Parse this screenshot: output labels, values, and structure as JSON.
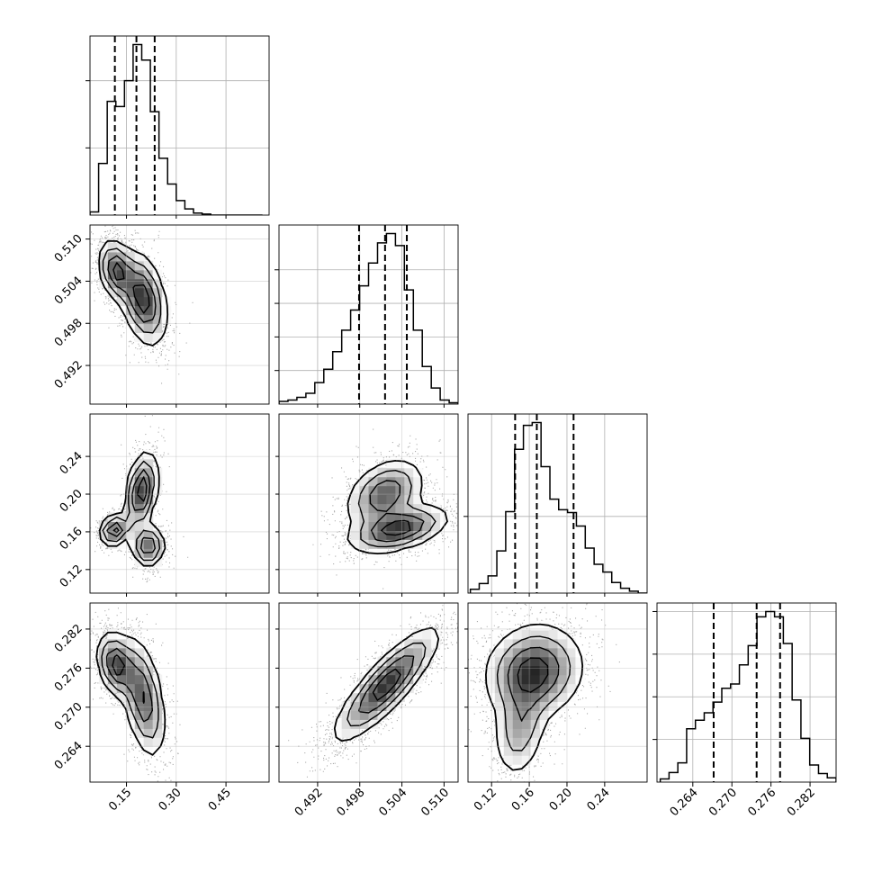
{
  "chart_data": {
    "type": "corner",
    "grid": true,
    "n_params": 4,
    "quantile_lines": "dashed",
    "params": [
      {
        "range": [
          0.04,
          0.58
        ],
        "ticks": [
          "0.15",
          "0.30",
          "0.45"
        ],
        "tick_values": [
          0.15,
          0.3,
          0.45
        ],
        "quantiles": [
          0.115,
          0.18,
          0.235
        ],
        "hist_edges": [
          0.04,
          0.066,
          0.092,
          0.118,
          0.144,
          0.17,
          0.196,
          0.222,
          0.248,
          0.274,
          0.3,
          0.326,
          0.352,
          0.378,
          0.404,
          0.43,
          0.456,
          0.482,
          0.508,
          0.534,
          0.56
        ],
        "hist_counts": [
          3,
          50,
          110,
          105,
          130,
          165,
          150,
          100,
          55,
          30,
          14,
          6,
          2,
          1,
          0,
          0,
          0,
          0,
          0,
          0
        ],
        "hist_ticks": [
          65,
          130
        ],
        "modes": [
          {
            "m": 0.125,
            "w": 0.08
          },
          {
            "m": 0.205,
            "w": 0.1
          }
        ]
      },
      {
        "range": [
          0.4865,
          0.512
        ],
        "ticks": [
          "0.492",
          "0.498",
          "0.504",
          "0.510"
        ],
        "tick_values": [
          0.492,
          0.498,
          0.504,
          0.51
        ],
        "quantiles": [
          0.4979,
          0.5016,
          0.5047
        ],
        "hist_edges": [
          0.4865,
          0.48778,
          0.48905,
          0.49033,
          0.4916,
          0.49288,
          0.49415,
          0.49543,
          0.4967,
          0.49798,
          0.49925,
          0.50053,
          0.5018,
          0.50308,
          0.50435,
          0.50563,
          0.5069,
          0.50818,
          0.50945,
          0.51073,
          0.512
        ],
        "hist_counts": [
          2,
          3,
          5,
          8,
          16,
          26,
          39,
          55,
          70,
          88,
          105,
          120,
          127,
          118,
          85,
          55,
          28,
          12,
          3,
          1
        ],
        "hist_ticks": [
          25,
          50,
          75,
          100
        ],
        "modes": [
          {
            "m": 0.5038,
            "w": 0.11
          },
          {
            "m": 0.5014,
            "w": 0.12
          }
        ]
      },
      {
        "range": [
          0.095,
          0.285
        ],
        "ticks": [
          "0.12",
          "0.16",
          "0.20",
          "0.24"
        ],
        "tick_values": [
          0.12,
          0.16,
          0.2,
          0.24
        ],
        "quantiles": [
          0.145,
          0.168,
          0.207
        ],
        "hist_edges": [
          0.0975,
          0.1069,
          0.1163,
          0.1256,
          0.135,
          0.1444,
          0.1538,
          0.1631,
          0.1725,
          0.1819,
          0.1912,
          0.2006,
          0.21,
          0.2194,
          0.2288,
          0.2381,
          0.2475,
          0.2569,
          0.2663,
          0.2756,
          0.285
        ],
        "hist_counts": [
          4,
          10,
          18,
          44,
          85,
          150,
          175,
          178,
          132,
          98,
          87,
          84,
          70,
          47,
          30,
          22,
          11,
          5,
          2,
          0
        ],
        "hist_ticks": [
          80
        ],
        "modes": [
          {
            "m": 0.162,
            "w": 0.07
          },
          {
            "m": 0.2,
            "w": 0.02
          }
        ]
      },
      {
        "range": [
          0.2585,
          0.286
        ],
        "ticks": [
          "0.264",
          "0.270",
          "0.276",
          "0.282"
        ],
        "tick_values": [
          0.264,
          0.27,
          0.276,
          0.282
        ],
        "quantiles": [
          0.2672,
          0.2738,
          0.2774
        ],
        "hist_edges": [
          0.259,
          0.26035,
          0.2617,
          0.26305,
          0.2644,
          0.26575,
          0.2671,
          0.26845,
          0.2698,
          0.27115,
          0.2725,
          0.27385,
          0.2752,
          0.27655,
          0.2779,
          0.27925,
          0.2806,
          0.28195,
          0.2833,
          0.28465,
          0.286
        ],
        "hist_counts": [
          3,
          9,
          18,
          50,
          58,
          65,
          75,
          88,
          92,
          110,
          128,
          155,
          160,
          155,
          130,
          77,
          41,
          16,
          8,
          4
        ],
        "hist_ticks": [
          40,
          80,
          120,
          160
        ],
        "modes": [
          {
            "m": 0.2757,
            "w": 0.11
          },
          {
            "m": 0.2689,
            "w": 0.08
          }
        ]
      }
    ],
    "pairs": [
      {
        "row": 1,
        "col": 0,
        "modes": [
          {
            "mx": 0.12,
            "my": 0.5055,
            "sx": 0.026,
            "sy": 0.0021,
            "r": -0.3,
            "w": 1.0
          },
          {
            "mx": 0.2,
            "my": 0.5015,
            "sx": 0.034,
            "sy": 0.0032,
            "r": -0.35,
            "w": 1.1
          }
        ]
      },
      {
        "row": 2,
        "col": 0,
        "modes": [
          {
            "mx": 0.115,
            "my": 0.162,
            "sx": 0.022,
            "sy": 0.008,
            "r": 0.2,
            "w": 0.8
          },
          {
            "mx": 0.195,
            "my": 0.203,
            "sx": 0.023,
            "sy": 0.02,
            "r": 0.35,
            "w": 0.9
          },
          {
            "mx": 0.215,
            "my": 0.145,
            "sx": 0.024,
            "sy": 0.011,
            "r": 0.0,
            "w": 0.7
          }
        ]
      },
      {
        "row": 2,
        "col": 1,
        "modes": [
          {
            "mx": 0.5035,
            "my": 0.163,
            "sx": 0.0034,
            "sy": 0.012,
            "r": 0.45,
            "w": 1.0
          },
          {
            "mx": 0.5016,
            "my": 0.2,
            "sx": 0.0027,
            "sy": 0.018,
            "r": 0.35,
            "w": 0.8
          }
        ]
      },
      {
        "row": 3,
        "col": 0,
        "modes": [
          {
            "mx": 0.12,
            "my": 0.2765,
            "sx": 0.028,
            "sy": 0.0024,
            "r": -0.3,
            "w": 1.0
          },
          {
            "mx": 0.2,
            "my": 0.2715,
            "sx": 0.032,
            "sy": 0.0045,
            "r": -0.45,
            "w": 0.85
          }
        ]
      },
      {
        "row": 3,
        "col": 1,
        "modes": [
          {
            "mx": 0.5018,
            "my": 0.2735,
            "sx": 0.0036,
            "sy": 0.0042,
            "r": 0.85,
            "w": 1.0
          }
        ]
      },
      {
        "row": 3,
        "col": 2,
        "modes": [
          {
            "mx": 0.165,
            "my": 0.2755,
            "sx": 0.025,
            "sy": 0.0035,
            "r": 0.1,
            "w": 1.0
          },
          {
            "mx": 0.15,
            "my": 0.267,
            "sx": 0.014,
            "sy": 0.004,
            "r": 0.2,
            "w": 0.5
          }
        ]
      }
    ]
  }
}
